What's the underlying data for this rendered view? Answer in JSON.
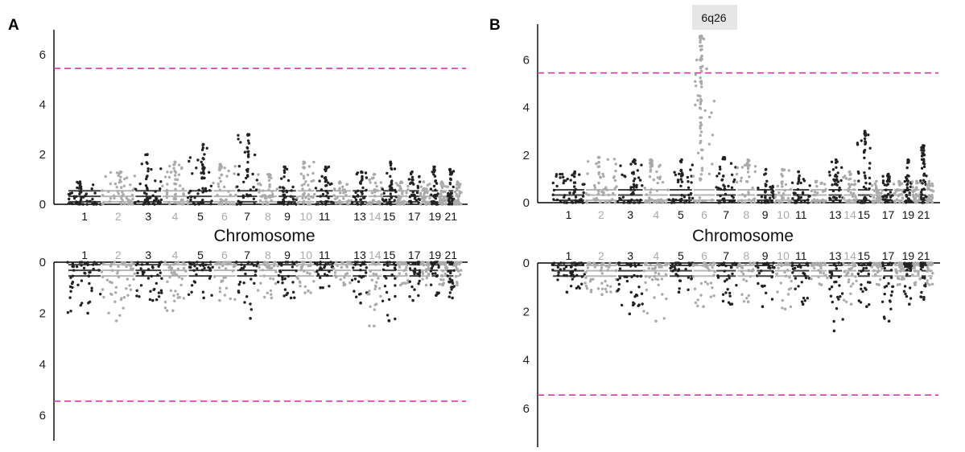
{
  "chart_data": [
    {
      "type": "scatter",
      "panel": "A",
      "xlabel": "Chromosome",
      "threshold": 5.45,
      "threshold_color": "#d63aa0",
      "top_ylim": [
        0,
        7
      ],
      "bottom_ylim": [
        0,
        7
      ],
      "yticks": [
        0,
        2,
        4,
        6
      ],
      "chromosome_labels": [
        "1",
        "2",
        "3",
        "4",
        "5",
        "6",
        "7",
        "8",
        "9",
        "10",
        "11",
        "13",
        "14",
        "15",
        "17",
        "19",
        "21"
      ],
      "color_odd": "#222222",
      "color_even": "#aaaaaa",
      "top_peaks": {
        "1": 0.9,
        "2": 1.3,
        "3": 2.0,
        "4": 1.7,
        "5": 2.4,
        "6": 1.6,
        "7": 2.8,
        "8": 1.2,
        "9": 1.5,
        "10": 1.7,
        "11": 1.5,
        "13": 1.3,
        "14": 1.2,
        "15": 1.7,
        "17": 1.3,
        "19": 1.5,
        "21": 1.4
      },
      "bottom_peaks": {
        "1": 2.0,
        "2": 2.3,
        "3": 1.5,
        "4": 1.9,
        "5": 1.4,
        "6": 1.5,
        "7": 2.2,
        "8": 1.4,
        "9": 1.4,
        "10": 1.2,
        "11": 1.0,
        "13": 1.6,
        "14": 2.5,
        "15": 2.3,
        "17": 1.5,
        "19": 1.3,
        "21": 1.4
      },
      "annotation": ""
    },
    {
      "type": "scatter",
      "panel": "B",
      "xlabel": "Chromosome",
      "threshold": 5.45,
      "threshold_color": "#d63aa0",
      "top_ylim": [
        0,
        7.5
      ],
      "bottom_ylim": [
        0,
        7.6
      ],
      "yticks": [
        0,
        2,
        4,
        6
      ],
      "chromosome_labels": [
        "1",
        "2",
        "3",
        "4",
        "5",
        "6",
        "7",
        "8",
        "9",
        "10",
        "11",
        "13",
        "14",
        "15",
        "17",
        "19",
        "21"
      ],
      "color_odd": "#222222",
      "color_even": "#aaaaaa",
      "top_peaks": {
        "1": 1.3,
        "2": 1.9,
        "3": 1.8,
        "4": 1.8,
        "5": 1.8,
        "6": 7.0,
        "7": 1.9,
        "8": 1.8,
        "9": 1.4,
        "10": 1.4,
        "11": 1.3,
        "13": 1.8,
        "14": 1.3,
        "15": 3.0,
        "17": 1.2,
        "19": 1.8,
        "21": 2.4
      },
      "bottom_peaks": {
        "1": 1.2,
        "2": 1.3,
        "3": 2.1,
        "4": 2.4,
        "5": 1.2,
        "6": 1.8,
        "7": 1.7,
        "8": 1.6,
        "9": 1.8,
        "10": 1.9,
        "11": 1.7,
        "13": 2.8,
        "14": 1.7,
        "15": 1.8,
        "17": 2.4,
        "19": 1.7,
        "21": 1.5
      },
      "annotation": "6q26"
    }
  ]
}
